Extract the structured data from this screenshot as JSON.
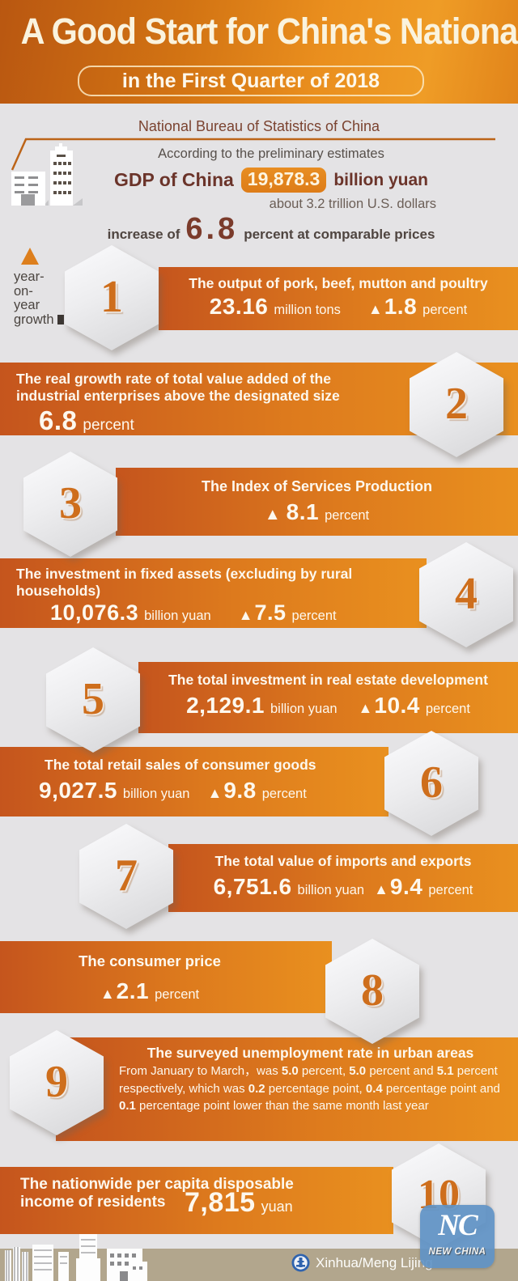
{
  "colors": {
    "accent_orange": "#e9901f",
    "bar_gradient_left": "#c5551d",
    "maroon_text": "#6b342a",
    "background_gray": "#e4e3e5",
    "footer_tan": "#b2a68d",
    "logo_blue": "#6092c6",
    "hexagon_number_orange": "#ce6e1c"
  },
  "icons": {
    "up_triangle": "▲"
  },
  "header": {
    "title": "A Good Start for China's National Economy",
    "subtitle": "in the First Quarter of 2018"
  },
  "intro": {
    "source": "National Bureau of Statistics of China",
    "line1": "According to the preliminary estimates",
    "gdp_label": "GDP of China",
    "gdp_value": "19,878.3",
    "gdp_unit": "billion yuan",
    "usd_note": "about 3.2 trillion U.S. dollars",
    "increase_prefix": "increase of",
    "increase_value": "6.8",
    "increase_suffix": "percent at comparable prices"
  },
  "legend": {
    "lines": [
      "year-",
      "on-",
      "year",
      "growth"
    ]
  },
  "sections": [
    {
      "num": "1",
      "title": "The output of pork, beef, mutton and poultry",
      "value": "23.16",
      "unit": "million tons",
      "delta": "1.8",
      "delta_unit": "percent"
    },
    {
      "num": "2",
      "title_lines": [
        "The real growth rate of total value added of the",
        "industrial enterprises above the designated size"
      ],
      "value": "6.8",
      "unit": "percent"
    },
    {
      "num": "3",
      "title": "The Index of Services Production",
      "delta": "8.1",
      "delta_unit": "percent"
    },
    {
      "num": "4",
      "title_lines": [
        "The investment in fixed assets (excluding by rural",
        "households)"
      ],
      "value": "10,076.3",
      "unit": "billion yuan",
      "delta": "7.5",
      "delta_unit": "percent"
    },
    {
      "num": "5",
      "title": "The total investment in real estate development",
      "value": "2,129.1",
      "unit": "billion yuan",
      "delta": "10.4",
      "delta_unit": "percent"
    },
    {
      "num": "6",
      "title": "The total retail sales of consumer goods",
      "value": "9,027.5",
      "unit": "billion yuan",
      "delta": "9.8",
      "delta_unit": "percent"
    },
    {
      "num": "7",
      "title": "The total value of imports and exports",
      "value": "6,751.6",
      "unit": "billion yuan",
      "delta": "9.4",
      "delta_unit": "percent"
    },
    {
      "num": "8",
      "title": "The consumer price",
      "delta": "2.1",
      "delta_unit": "percent"
    },
    {
      "num": "9",
      "title": "The surveyed unemployment rate in urban areas",
      "body": [
        [
          "From January to March，was ",
          0
        ],
        [
          "5.0",
          1
        ],
        [
          " percent, ",
          0
        ],
        [
          "5.0",
          1
        ],
        [
          " percent and ",
          0
        ],
        [
          "5.1",
          1
        ],
        [
          " percent respectively, which was ",
          0
        ],
        [
          "0.2",
          1
        ],
        [
          " percentage point, ",
          0
        ],
        [
          "0.4",
          1
        ],
        [
          " percentage point and ",
          0
        ],
        [
          "0.1",
          1
        ],
        [
          " percentage point lower than the same month last year",
          0
        ]
      ]
    },
    {
      "num": "10",
      "title_lines": [
        "The nationwide per capita disposable",
        "income of residents"
      ],
      "value": "7,815",
      "unit": "yuan"
    }
  ],
  "footer": {
    "credit": "Xinhua/Meng Lijing",
    "logo_monogram": "NC",
    "logo_text": "NEW CHINA"
  }
}
